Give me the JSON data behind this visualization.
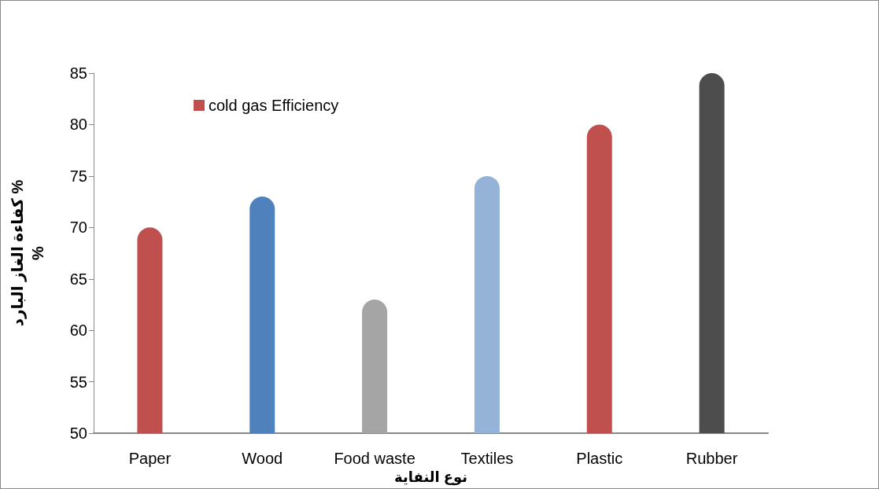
{
  "chart_data": {
    "type": "bar",
    "xlabel": "نوع النفاية",
    "ylabel": "كفاءة الغاز البارد %\n%",
    "categories": [
      "Paper",
      "Wood",
      "Food waste",
      "Textiles",
      "Plastic",
      "Rubber"
    ],
    "series": [
      {
        "name": "cold gas Efficiency",
        "color": "#c0504d",
        "colors": [
          "#c0504d",
          "#4f81bd",
          "#a5a5a5",
          "#95b3d7",
          "#c0504d",
          "#4d4d4d"
        ],
        "values": [
          70,
          73,
          63,
          75,
          80,
          85
        ]
      }
    ],
    "ylim": [
      50,
      85
    ],
    "yticks": [
      50,
      55,
      60,
      65,
      70,
      75,
      80,
      85
    ],
    "grid": false,
    "legend": "top left"
  }
}
